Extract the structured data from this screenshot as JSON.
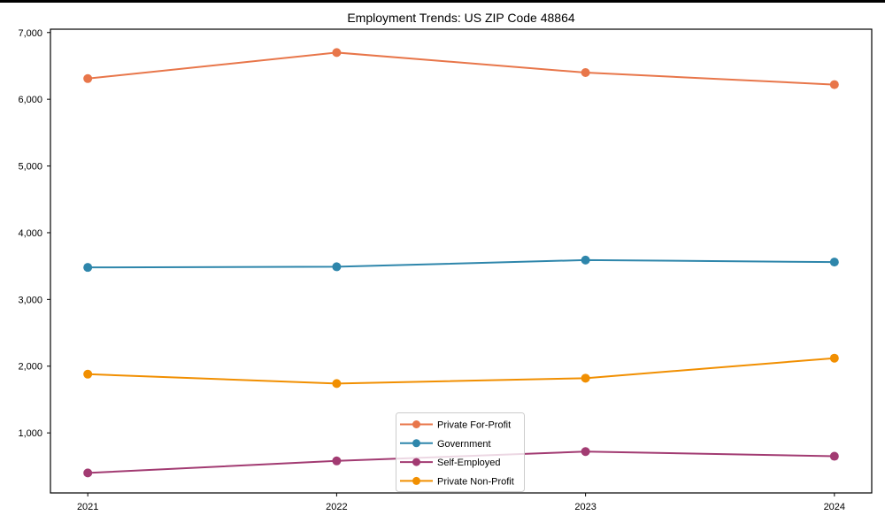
{
  "page": {
    "background": "#ffffff"
  },
  "chart_data": {
    "type": "line",
    "title": "Employment Trends: US ZIP Code 48864",
    "xlabel": "",
    "ylabel": "",
    "x": [
      2021,
      2022,
      2023,
      2024
    ],
    "x_tick_labels": [
      "2021",
      "2022",
      "2023",
      "2024"
    ],
    "y_ticks": [
      1000,
      2000,
      3000,
      4000,
      5000,
      6000,
      7000
    ],
    "y_tick_labels": [
      "1,000",
      "2,000",
      "3,000",
      "4,000",
      "5,000",
      "6,000",
      "7,000"
    ],
    "xlim": [
      2020.85,
      2024.15
    ],
    "ylim": [
      100,
      7050
    ],
    "grid": false,
    "marker": "o",
    "legend_position": "lower center",
    "legend_border_color": "#cccccc",
    "axis_color": "#000000",
    "series": [
      {
        "name": "Private For-Profit",
        "color": "#E8764A",
        "values": [
          6310,
          6700,
          6400,
          6220
        ]
      },
      {
        "name": "Government",
        "color": "#2E86AB",
        "values": [
          3480,
          3490,
          3590,
          3560
        ]
      },
      {
        "name": "Self-Employed",
        "color": "#A23B72",
        "values": [
          400,
          580,
          720,
          650
        ]
      },
      {
        "name": "Private Non-Profit",
        "color": "#F18F01",
        "values": [
          1880,
          1740,
          1820,
          2120
        ]
      }
    ]
  }
}
